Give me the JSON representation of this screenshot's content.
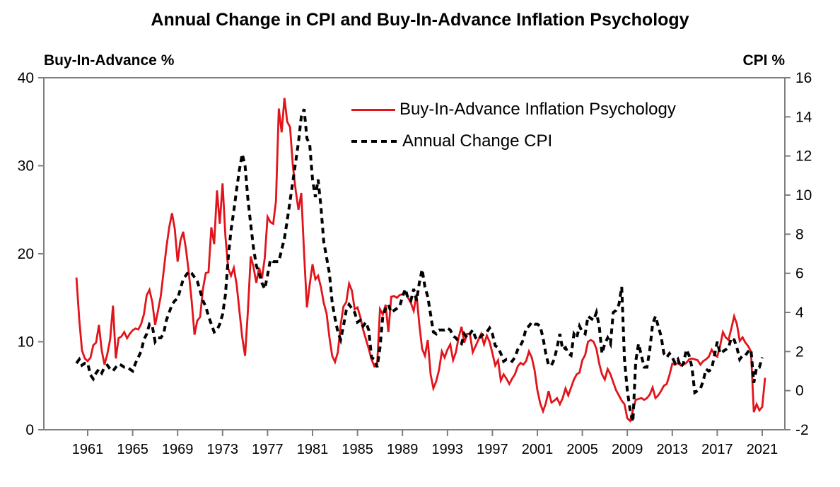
{
  "chart": {
    "title": "Annual Change in CPI and Buy-In-Advance Inflation Psychology",
    "left_axis_title": "Buy-In-Advance %",
    "right_axis_title": "CPI %",
    "legend": [
      {
        "label": "Buy-In-Advance Inflation Psychology",
        "color": "#E2141B",
        "style": "solid"
      },
      {
        "label": "Annual Change CPI",
        "color": "#000000",
        "style": "dashed"
      }
    ],
    "frame_color": "#7f7f7f"
  },
  "chart_data": {
    "type": "line",
    "title": "Annual Change in CPI and Buy-In-Advance Inflation Psychology",
    "x_start_year": 1960.0,
    "x_step_years": 0.25,
    "x_tick_years": [
      1961,
      1965,
      1969,
      1973,
      1977,
      1981,
      1985,
      1989,
      1993,
      1997,
      2001,
      2005,
      2009,
      2013,
      2017,
      2021
    ],
    "grid": false,
    "legend_position": "inside-top-right",
    "left_axis": {
      "label": "Buy-In-Advance %",
      "range": [
        0,
        40
      ],
      "ticks": [
        0,
        10,
        20,
        30,
        40
      ]
    },
    "right_axis": {
      "label": "CPI %",
      "range": [
        -2,
        16
      ],
      "ticks": [
        -2,
        0,
        2,
        4,
        6,
        8,
        10,
        12,
        14,
        16
      ]
    },
    "series": [
      {
        "name": "Buy-In-Advance Inflation Psychology",
        "axis": "left",
        "color": "#E2141B",
        "line_style": "solid",
        "values": [
          17.3,
          12.5,
          9.0,
          8.1,
          7.8,
          8.2,
          9.6,
          9.9,
          11.9,
          9.0,
          7.4,
          8.6,
          10.3,
          14.1,
          8.1,
          10.4,
          10.6,
          11.1,
          10.4,
          10.9,
          11.3,
          11.5,
          11.4,
          12.0,
          13.1,
          15.3,
          15.9,
          14.5,
          11.9,
          13.5,
          15.2,
          17.9,
          20.7,
          23.0,
          24.6,
          22.8,
          19.1,
          21.5,
          22.5,
          20.5,
          17.8,
          14.6,
          10.8,
          12.4,
          12.8,
          16.0,
          17.8,
          17.9,
          23.0,
          21.1,
          27.2,
          23.4,
          28.0,
          22.0,
          18.3,
          17.5,
          18.4,
          16.5,
          13.5,
          10.5,
          8.4,
          13.5,
          19.7,
          18.5,
          16.7,
          18.4,
          17.2,
          19.5,
          24.2,
          23.6,
          23.4,
          26.0,
          36.5,
          33.8,
          37.7,
          35.0,
          34.4,
          30.0,
          27.2,
          25.0,
          26.9,
          20.0,
          13.9,
          16.5,
          18.8,
          17.1,
          17.5,
          16.2,
          14.4,
          13.2,
          10.5,
          8.4,
          7.7,
          8.8,
          11.9,
          14.0,
          14.5,
          16.6,
          15.8,
          13.7,
          13.9,
          12.8,
          11.4,
          10.3,
          9.2,
          8.0,
          7.2,
          7.4,
          13.7,
          13.1,
          14.2,
          11.1,
          15.1,
          15.2,
          15.0,
          15.3,
          15.4,
          15.6,
          15.0,
          14.4,
          13.5,
          15.4,
          12.0,
          9.2,
          8.4,
          10.2,
          6.3,
          4.7,
          5.5,
          6.8,
          8.9,
          8.2,
          9.1,
          9.7,
          7.9,
          8.8,
          10.5,
          11.7,
          9.9,
          10.9,
          10.9,
          8.8,
          9.5,
          10.2,
          10.9,
          9.7,
          10.7,
          10.0,
          8.7,
          7.3,
          7.9,
          5.6,
          6.3,
          5.8,
          5.2,
          5.8,
          6.3,
          7.2,
          7.6,
          7.4,
          7.8,
          8.9,
          8.2,
          6.8,
          4.5,
          3.0,
          2.1,
          3.0,
          4.4,
          3.1,
          3.3,
          3.6,
          2.9,
          3.6,
          4.7,
          3.9,
          4.8,
          5.7,
          6.3,
          6.5,
          7.9,
          8.5,
          10.0,
          10.2,
          10.0,
          9.2,
          7.5,
          6.3,
          5.7,
          6.9,
          6.3,
          5.4,
          4.5,
          3.9,
          3.3,
          2.9,
          1.3,
          1.0,
          2.2,
          3.4,
          3.5,
          3.6,
          3.4,
          3.6,
          4.0,
          4.8,
          3.6,
          3.9,
          4.4,
          5.0,
          5.2,
          6.2,
          7.5,
          7.4,
          7.6,
          7.3,
          7.4,
          7.6,
          8.0,
          8.1,
          8.0,
          7.9,
          7.4,
          7.8,
          8.0,
          8.3,
          9.1,
          8.6,
          8.3,
          9.5,
          11.1,
          10.5,
          10.2,
          11.5,
          12.9,
          12.0,
          10.1,
          10.5,
          9.9,
          9.5,
          8.9,
          2.0,
          2.9,
          2.2,
          2.6,
          5.9
        ]
      },
      {
        "name": "Annual Change CPI",
        "axis": "right",
        "color": "#000000",
        "line_style": "dashed",
        "values": [
          1.4,
          1.6,
          1.3,
          1.4,
          1.4,
          0.8,
          0.6,
          0.9,
          1.1,
          0.9,
          1.2,
          1.3,
          1.1,
          1.0,
          1.2,
          1.35,
          1.3,
          1.2,
          1.2,
          1.1,
          1.0,
          1.4,
          1.7,
          2.0,
          2.6,
          2.9,
          3.4,
          3.3,
          2.5,
          2.7,
          2.7,
          2.9,
          3.6,
          4.0,
          4.4,
          4.6,
          4.7,
          5.2,
          5.7,
          5.9,
          6.1,
          6.0,
          5.8,
          5.6,
          5.1,
          4.6,
          4.3,
          3.8,
          3.4,
          3.0,
          3.1,
          3.4,
          3.9,
          4.9,
          6.8,
          8.2,
          9.2,
          10.3,
          11.3,
          12.1,
          11.5,
          9.8,
          8.5,
          7.3,
          6.4,
          6.0,
          5.5,
          5.2,
          5.9,
          6.7,
          6.6,
          6.6,
          6.6,
          7.2,
          7.8,
          8.7,
          9.7,
          10.7,
          11.7,
          12.7,
          14.0,
          14.4,
          12.9,
          12.6,
          10.8,
          9.9,
          10.8,
          9.4,
          7.6,
          6.8,
          6.0,
          4.5,
          3.7,
          3.0,
          2.6,
          3.3,
          4.1,
          4.4,
          4.2,
          4.0,
          3.5,
          3.6,
          3.3,
          3.5,
          3.1,
          1.7,
          1.6,
          1.2,
          2.2,
          3.8,
          4.2,
          4.4,
          4.0,
          4.1,
          4.2,
          4.3,
          4.8,
          5.2,
          4.7,
          4.6,
          5.2,
          4.6,
          5.5,
          6.2,
          5.3,
          4.8,
          3.9,
          3.0,
          2.9,
          3.1,
          3.1,
          3.1,
          3.2,
          3.1,
          2.8,
          2.7,
          2.5,
          2.4,
          2.9,
          2.7,
          2.9,
          3.1,
          2.7,
          2.6,
          2.8,
          2.9,
          3.0,
          3.2,
          2.9,
          2.3,
          2.2,
          1.9,
          1.5,
          1.6,
          1.6,
          1.5,
          1.7,
          2.1,
          2.3,
          2.6,
          3.2,
          3.3,
          3.5,
          3.4,
          3.4,
          3.3,
          2.7,
          1.9,
          1.3,
          1.3,
          1.6,
          2.2,
          2.9,
          2.1,
          2.2,
          1.9,
          1.8,
          2.9,
          2.7,
          3.3,
          3.0,
          2.9,
          3.8,
          3.7,
          3.6,
          4.0,
          3.3,
          1.9,
          2.4,
          2.7,
          2.4,
          4.0,
          4.1,
          4.4,
          5.3,
          1.6,
          0.0,
          -1.0,
          -1.6,
          1.5,
          2.4,
          1.8,
          1.2,
          1.2,
          2.1,
          3.4,
          3.8,
          3.3,
          2.8,
          1.9,
          1.7,
          1.9,
          1.7,
          1.4,
          1.6,
          1.2,
          1.4,
          2.1,
          1.8,
          1.2,
          -0.1,
          0.0,
          0.1,
          0.5,
          1.1,
          1.0,
          1.1,
          1.8,
          2.5,
          1.9,
          2.0,
          2.1,
          2.2,
          2.7,
          2.6,
          2.2,
          1.6,
          1.8,
          1.8,
          2.0,
          2.1,
          0.4,
          1.2,
          1.2,
          1.7
        ]
      }
    ]
  }
}
